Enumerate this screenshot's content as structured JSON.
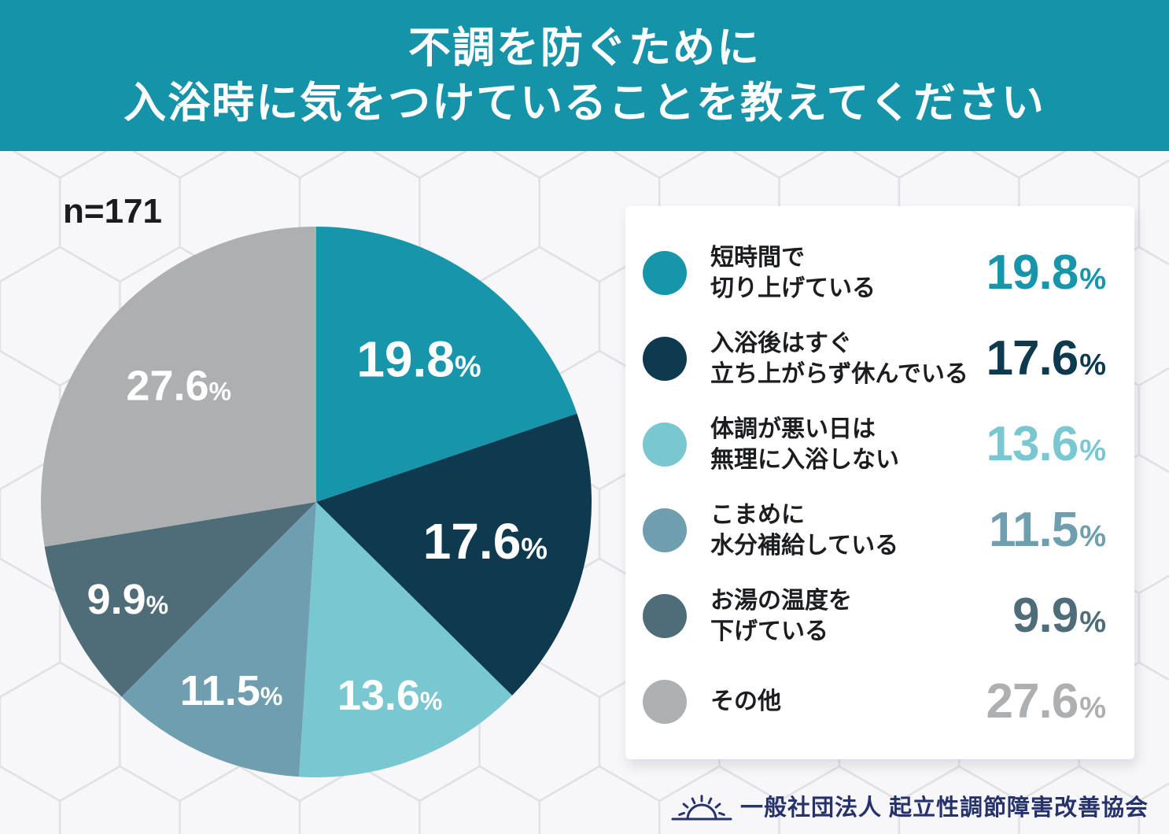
{
  "header": {
    "bg_color": "#1593a8"
  },
  "chart_data": {
    "type": "pie",
    "title_lines": [
      "不調を防ぐために",
      "入浴時に気をつけていることを教えてください"
    ],
    "title": "不調を防ぐために入浴時に気をつけていることを教えてください",
    "sample_size": "n=171",
    "unit": "%",
    "start_angle": "12-oclock",
    "direction": "clockwise",
    "legend_position": "right",
    "labels_on_slices": true,
    "segments": [
      {
        "label": "短時間で切り上げている",
        "label_lines": [
          "短時間で",
          "切り上げている"
        ],
        "value": 19.8,
        "color": "#1795aa"
      },
      {
        "label": "入浴後はすぐ立ち上がらず休んでいる",
        "label_lines": [
          "入浴後はすぐ",
          "立ち上がらず休んでいる"
        ],
        "value": 17.6,
        "color": "#0e3a4f"
      },
      {
        "label": "体調が悪い日は無理に入浴しない",
        "label_lines": [
          "体調が悪い日は",
          "無理に入浴しない"
        ],
        "value": 13.6,
        "color": "#79c7d0"
      },
      {
        "label": "こまめに水分補給している",
        "label_lines": [
          "こまめに",
          "水分補給している"
        ],
        "value": 11.5,
        "color": "#6f9eae"
      },
      {
        "label": "お湯の温度を下げている",
        "label_lines": [
          "お湯の温度を",
          "下げている"
        ],
        "value": 9.9,
        "color": "#4f6d78"
      },
      {
        "label": "その他",
        "label_lines": [
          "その他"
        ],
        "value": 27.6,
        "color": "#aeafb1"
      }
    ]
  },
  "footer": {
    "org_name": "一般社団法人 起立性調節障害改善協会",
    "logo_icon": "rising-sun-icon",
    "text_color": "#26326a"
  }
}
